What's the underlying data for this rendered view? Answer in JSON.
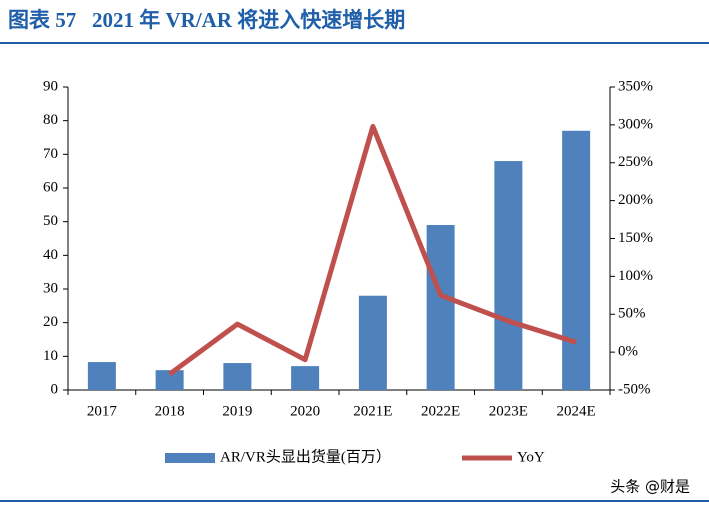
{
  "chart_data": {
    "type": "bar-line",
    "title": "图表 57   2021 年 VR/AR 将进入快速增长期",
    "watermark": "头条 @财是",
    "categories": [
      "2017",
      "2018",
      "2019",
      "2020",
      "2021E",
      "2022E",
      "2023E",
      "2024E"
    ],
    "series": [
      {
        "name": "AR/VR头显出货量(百万）",
        "type": "bar",
        "color": "#4f81bd",
        "values": [
          8.3,
          5.9,
          8.0,
          7.1,
          28,
          49,
          68,
          77
        ]
      },
      {
        "name": "YoY",
        "type": "line",
        "axis": "y2",
        "color": "#c0504d",
        "values": [
          null,
          -29,
          37,
          -10,
          298,
          75,
          41,
          13
        ]
      }
    ],
    "ylim": [
      0,
      90
    ],
    "yticks": [
      0,
      10,
      20,
      30,
      40,
      50,
      60,
      70,
      80,
      90
    ],
    "y2lim": [
      -50,
      350
    ],
    "y2ticks": [
      {
        "value": -50,
        "label": "-50%"
      },
      {
        "value": 0,
        "label": "0%"
      },
      {
        "value": 50,
        "label": "50%"
      },
      {
        "value": 100,
        "label": "100%"
      },
      {
        "value": 150,
        "label": "150%"
      },
      {
        "value": 200,
        "label": "200%"
      },
      {
        "value": 250,
        "label": "250%"
      },
      {
        "value": 300,
        "label": "300%"
      },
      {
        "value": 350,
        "label": "350%"
      }
    ]
  }
}
